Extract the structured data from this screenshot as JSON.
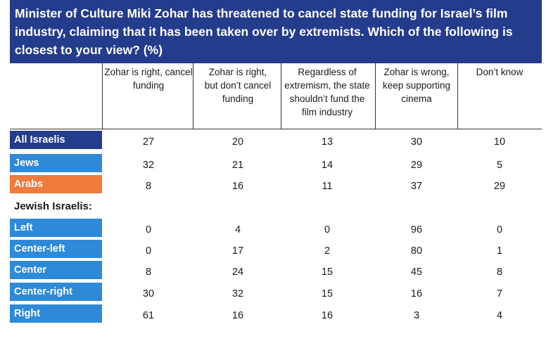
{
  "chart_data": {
    "type": "table",
    "title": "Minister of Culture Miki Zohar has threatened to cancel state funding for Israel’s film industry, claiming that it has been taken over by extremists. Which of the following is closest to your view? (%)",
    "columns": [
      [
        "Zohar is right, cancel",
        "funding"
      ],
      [
        "Zohar is right,",
        "but don’t cancel",
        "funding"
      ],
      [
        "Regardless of",
        "extremism, the state",
        "shouldn’t fund the",
        "film industry"
      ],
      [
        "Zohar is wrong,",
        "keep supporting",
        "cinema"
      ],
      [
        "Don’t know"
      ]
    ],
    "group_label": "Jewish Israelis:",
    "rows": [
      {
        "label": "All Israelis",
        "color": "#233c8c",
        "values": [
          27,
          20,
          13,
          30,
          10
        ]
      },
      {
        "label": "Jews",
        "color": "#2e8ad8",
        "values": [
          32,
          21,
          14,
          29,
          5
        ]
      },
      {
        "label": "Arabs",
        "color": "#f27a3d",
        "values": [
          8,
          16,
          11,
          37,
          29
        ]
      },
      {
        "label": "Left",
        "color": "#2e8ad8",
        "values": [
          0,
          4,
          0,
          96,
          0
        ]
      },
      {
        "label": "Center-left",
        "color": "#2e8ad8",
        "values": [
          0,
          17,
          2,
          80,
          1
        ]
      },
      {
        "label": "Center",
        "color": "#2e8ad8",
        "values": [
          8,
          24,
          15,
          45,
          8
        ]
      },
      {
        "label": "Center-right",
        "color": "#2e8ad8",
        "values": [
          30,
          32,
          15,
          16,
          7
        ]
      },
      {
        "label": "Right",
        "color": "#2e8ad8",
        "values": [
          61,
          16,
          16,
          3,
          4
        ]
      }
    ]
  }
}
